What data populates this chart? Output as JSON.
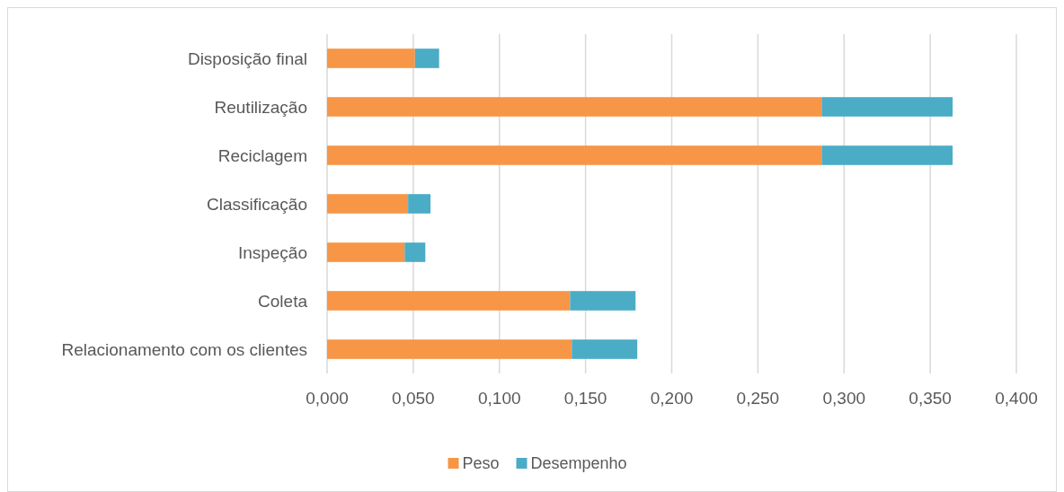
{
  "chart_data": {
    "type": "bar",
    "orientation": "horizontal",
    "stacked": true,
    "categories": [
      "Disposição final",
      "Reutilização",
      "Reciclagem",
      "Classificação",
      "Inspeção",
      "Coleta",
      "Relacionamento com os clientes"
    ],
    "series": [
      {
        "name": "Peso",
        "color": "#f79646",
        "values": [
          0.051,
          0.287,
          0.287,
          0.047,
          0.045,
          0.141,
          0.142
        ]
      },
      {
        "name": "Desempenho",
        "color": "#4bacc6",
        "values": [
          0.014,
          0.076,
          0.076,
          0.013,
          0.012,
          0.038,
          0.038
        ]
      }
    ],
    "xlim": [
      0,
      0.4
    ],
    "xticks": [
      {
        "value": 0,
        "label": "0,000"
      },
      {
        "value": 0.05,
        "label": "0,050"
      },
      {
        "value": 0.1,
        "label": "0,100"
      },
      {
        "value": 0.15,
        "label": "0,150"
      },
      {
        "value": 0.2,
        "label": "0,200"
      },
      {
        "value": 0.25,
        "label": "0,250"
      },
      {
        "value": 0.3,
        "label": "0,300"
      },
      {
        "value": 0.35,
        "label": "0,350"
      },
      {
        "value": 0.4,
        "label": "0,400"
      }
    ],
    "grid": "x",
    "legend": "bottom"
  }
}
